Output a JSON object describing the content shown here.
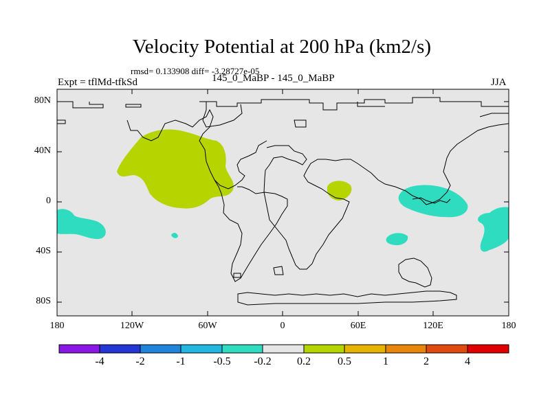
{
  "title": "Velocity Potential at 200 hPa (km2/s)",
  "stats": "rmsd= 0.133908 diff= -3.28727e-05",
  "experiment": "Expt = tflMd-tfkSd",
  "period": "145_0_MaBP - 145_0_MaBP",
  "season": "JJA",
  "colors": {
    "background": "#e6e6e6",
    "positive_fill": "#b5d400",
    "negative_fill": "#2fdcc0"
  },
  "y_ticks": [
    "80N",
    "40N",
    "0",
    "40S",
    "80S"
  ],
  "x_ticks": [
    "180",
    "120W",
    "60W",
    "0",
    "60E",
    "120E",
    "180"
  ],
  "colorbar": {
    "colors": [
      "#8a17e6",
      "#2436d6",
      "#1f84da",
      "#22b6e0",
      "#2fdcc0",
      "#e6e6e6",
      "#b5d400",
      "#e6b400",
      "#e8860c",
      "#e04a10",
      "#e00000"
    ],
    "labels": [
      "-4",
      "-2",
      "-1",
      "-0.5",
      "-0.2",
      "0.2",
      "0.5",
      "1",
      "2",
      "4"
    ]
  }
}
